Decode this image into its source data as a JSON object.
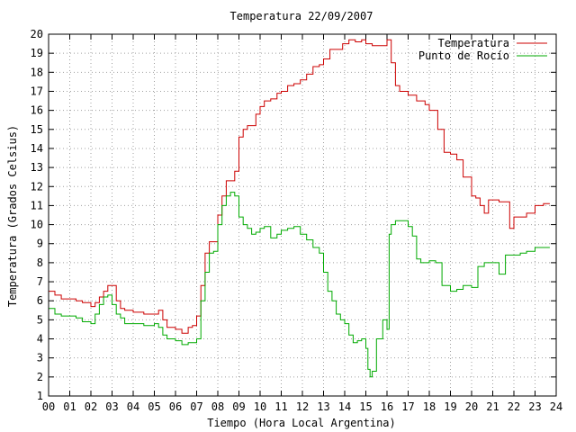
{
  "chart_data": {
    "type": "line",
    "title": "Temperatura 22/09/2007",
    "xlabel": "Tiempo (Hora Local Argentina)",
    "ylabel": "Temperatura (Grados Celsius)",
    "xlim": [
      0,
      24
    ],
    "ylim": [
      1,
      20
    ],
    "xticks": [
      "00",
      "01",
      "02",
      "03",
      "04",
      "05",
      "06",
      "07",
      "08",
      "09",
      "10",
      "11",
      "12",
      "13",
      "14",
      "15",
      "16",
      "17",
      "18",
      "19",
      "20",
      "21",
      "22",
      "23",
      "24"
    ],
    "yticks": [
      "1",
      "2",
      "3",
      "4",
      "5",
      "6",
      "7",
      "8",
      "9",
      "10",
      "11",
      "12",
      "13",
      "14",
      "15",
      "16",
      "17",
      "18",
      "19",
      "20"
    ],
    "grid": true,
    "legend_position": "top-right",
    "colors": {
      "temperature": "#cc0000",
      "dewpoint": "#00aa00"
    },
    "series": [
      {
        "name": "Temperatura",
        "x": [
          0,
          0.3,
          0.6,
          1,
          1.3,
          1.6,
          2.0,
          2.2,
          2.4,
          2.6,
          2.8,
          3.0,
          3.2,
          3.4,
          3.6,
          4.0,
          4.5,
          5.0,
          5.2,
          5.4,
          5.6,
          6.0,
          6.3,
          6.6,
          6.8,
          7.0,
          7.2,
          7.4,
          7.6,
          7.8,
          8.0,
          8.2,
          8.4,
          8.6,
          8.8,
          9.0,
          9.2,
          9.4,
          9.6,
          9.8,
          10.0,
          10.2,
          10.5,
          10.8,
          11.0,
          11.3,
          11.6,
          11.9,
          12.2,
          12.5,
          12.8,
          13.0,
          13.3,
          13.6,
          13.9,
          14.2,
          14.5,
          14.8,
          15.0,
          15.3,
          15.6,
          15.9,
          16.0,
          16.2,
          16.4,
          16.6,
          17.0,
          17.4,
          17.8,
          18.0,
          18.4,
          18.7,
          19.0,
          19.3,
          19.6,
          20.0,
          20.2,
          20.4,
          20.6,
          20.8,
          21.0,
          21.3,
          21.6,
          21.8,
          22.0,
          22.3,
          22.6,
          23.0,
          23.4,
          23.7
        ],
        "y": [
          6.5,
          6.3,
          6.1,
          6.1,
          6.0,
          5.9,
          5.7,
          5.9,
          6.2,
          6.5,
          6.8,
          6.8,
          6.0,
          5.6,
          5.5,
          5.4,
          5.3,
          5.3,
          5.5,
          5.0,
          4.6,
          4.5,
          4.3,
          4.6,
          4.7,
          5.2,
          6.8,
          8.5,
          9.1,
          9.1,
          10.5,
          11.5,
          12.3,
          12.3,
          12.8,
          14.6,
          15.0,
          15.2,
          15.2,
          15.8,
          16.2,
          16.5,
          16.6,
          16.9,
          17.0,
          17.3,
          17.4,
          17.6,
          17.9,
          18.3,
          18.4,
          18.7,
          19.2,
          19.2,
          19.5,
          19.7,
          19.6,
          19.7,
          19.5,
          19.4,
          19.4,
          19.4,
          19.7,
          18.5,
          17.3,
          17.0,
          16.8,
          16.5,
          16.3,
          16.0,
          15.0,
          13.8,
          13.7,
          13.4,
          12.5,
          11.5,
          11.4,
          11.0,
          10.6,
          11.3,
          11.3,
          11.2,
          11.2,
          9.8,
          10.4,
          10.4,
          10.6,
          11.0,
          11.1,
          11.1
        ]
      },
      {
        "name": "Punto de Rocío",
        "x": [
          0,
          0.3,
          0.6,
          1,
          1.3,
          1.6,
          2.0,
          2.2,
          2.4,
          2.6,
          2.8,
          3.0,
          3.2,
          3.4,
          3.6,
          4.0,
          4.5,
          5.0,
          5.2,
          5.4,
          5.6,
          6.0,
          6.3,
          6.6,
          6.8,
          7.0,
          7.2,
          7.4,
          7.6,
          7.8,
          8.0,
          8.2,
          8.4,
          8.6,
          8.8,
          9.0,
          9.2,
          9.4,
          9.6,
          9.8,
          10.0,
          10.2,
          10.5,
          10.8,
          11.0,
          11.3,
          11.6,
          11.9,
          12.2,
          12.5,
          12.8,
          13.0,
          13.2,
          13.4,
          13.6,
          13.8,
          14.0,
          14.2,
          14.4,
          14.6,
          14.8,
          15.0,
          15.1,
          15.2,
          15.3,
          15.5,
          15.8,
          16.0,
          16.1,
          16.2,
          16.4,
          16.6,
          17.0,
          17.2,
          17.4,
          17.6,
          18.0,
          18.3,
          18.6,
          19.0,
          19.3,
          19.6,
          20.0,
          20.3,
          20.6,
          21.0,
          21.3,
          21.6,
          22.0,
          22.3,
          22.6,
          23.0,
          23.4,
          23.7
        ],
        "y": [
          5.6,
          5.3,
          5.2,
          5.2,
          5.1,
          4.9,
          4.8,
          5.3,
          5.8,
          6.2,
          6.3,
          5.8,
          5.3,
          5.1,
          4.8,
          4.8,
          4.7,
          4.8,
          4.6,
          4.2,
          4.0,
          3.9,
          3.7,
          3.8,
          3.8,
          4.0,
          6.0,
          7.5,
          8.5,
          8.6,
          10.0,
          11.0,
          11.5,
          11.7,
          11.5,
          10.4,
          10.0,
          9.8,
          9.5,
          9.6,
          9.8,
          9.9,
          9.3,
          9.5,
          9.7,
          9.8,
          9.9,
          9.5,
          9.2,
          8.8,
          8.5,
          7.5,
          6.5,
          6.0,
          5.3,
          5.0,
          4.8,
          4.2,
          3.8,
          3.9,
          4.0,
          3.5,
          2.4,
          2.0,
          2.3,
          4.0,
          5.0,
          4.5,
          9.5,
          10.0,
          10.2,
          10.2,
          9.9,
          9.4,
          8.2,
          8.0,
          8.1,
          8.0,
          6.8,
          6.5,
          6.6,
          6.8,
          6.7,
          7.8,
          8.0,
          8.0,
          7.4,
          8.4,
          8.4,
          8.5,
          8.6,
          8.8,
          8.8,
          8.8
        ]
      }
    ]
  }
}
